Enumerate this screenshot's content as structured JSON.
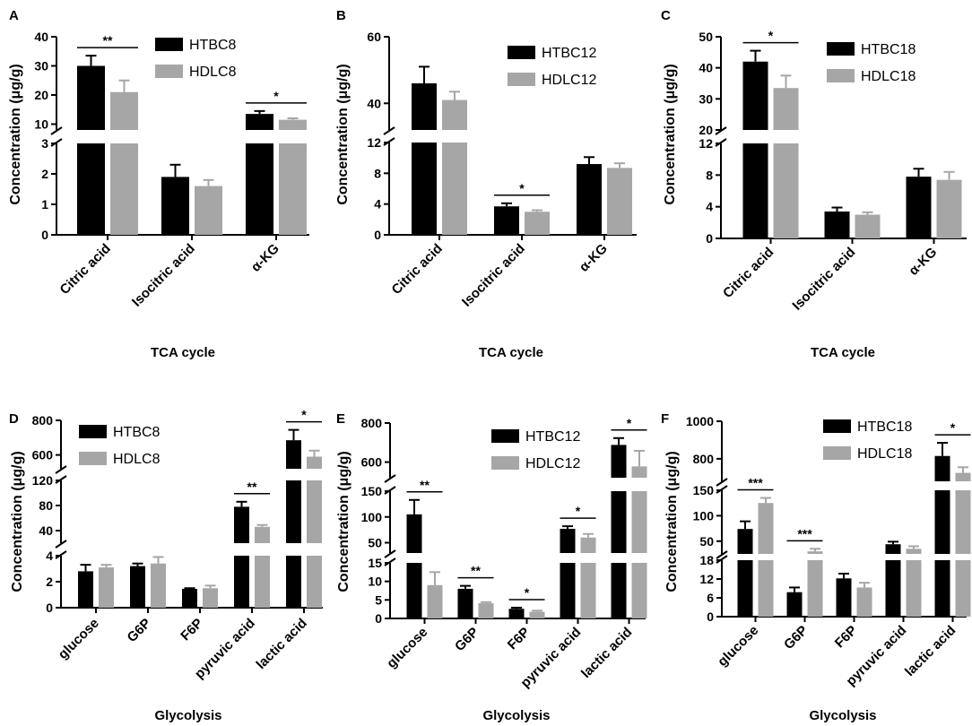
{
  "colors": {
    "series1": "#000000",
    "series2": "#a6a6a6",
    "axis": "#000000"
  },
  "chart_data": [
    {
      "type": "bar",
      "panel_label": "A",
      "title": "",
      "xlabel": "TCA cycle",
      "ylabel": "Concentration (μg/g)",
      "categories": [
        "Citric acid",
        "Isocitric acid",
        "α-KG"
      ],
      "legend_position": "top-right",
      "series": [
        {
          "name": "HTBC8",
          "values": [
            30,
            1.9,
            13.5
          ],
          "errors": [
            3.5,
            0.4,
            1.0
          ]
        },
        {
          "name": "HDLC8",
          "values": [
            21,
            1.6,
            11.5
          ],
          "errors": [
            4.0,
            0.2,
            0.5
          ]
        }
      ],
      "y_segments": [
        {
          "range": [
            0,
            3
          ],
          "ticks": [
            0,
            1,
            2,
            3
          ]
        },
        {
          "range": [
            8,
            40
          ],
          "ticks": [
            10,
            20,
            30,
            40
          ]
        }
      ],
      "significance": [
        {
          "category": 0,
          "label": "**"
        },
        {
          "category": 2,
          "label": "*"
        }
      ]
    },
    {
      "type": "bar",
      "panel_label": "B",
      "title": "",
      "xlabel": "TCA cycle",
      "ylabel": "Concentration (μg/g)",
      "categories": [
        "Citric acid",
        "Isocitric acid",
        "α-KG"
      ],
      "legend_position": "top-right",
      "series": [
        {
          "name": "HTBC12",
          "values": [
            46,
            3.7,
            9.2
          ],
          "errors": [
            5.0,
            0.4,
            0.9
          ]
        },
        {
          "name": "HDLC12",
          "values": [
            41,
            3.0,
            8.7
          ],
          "errors": [
            2.5,
            0.2,
            0.6
          ]
        }
      ],
      "y_segments": [
        {
          "range": [
            0,
            12
          ],
          "ticks": [
            0,
            4,
            8,
            12
          ]
        },
        {
          "range": [
            32,
            60
          ],
          "ticks": [
            40,
            60
          ]
        }
      ],
      "significance": [
        {
          "category": 1,
          "label": "*"
        }
      ]
    },
    {
      "type": "bar",
      "panel_label": "C",
      "title": "",
      "xlabel": "TCA cycle",
      "ylabel": "Concentration (μg/g)",
      "categories": [
        "Citric acid",
        "Isocitric acid",
        "α-KG"
      ],
      "legend_position": "top-right",
      "series": [
        {
          "name": "HTBC18",
          "values": [
            42,
            3.4,
            7.8
          ],
          "errors": [
            3.5,
            0.5,
            1.0
          ]
        },
        {
          "name": "HDLC18",
          "values": [
            33.5,
            3.0,
            7.4
          ],
          "errors": [
            4.0,
            0.3,
            1.0
          ]
        }
      ],
      "y_segments": [
        {
          "range": [
            0,
            12
          ],
          "ticks": [
            0,
            4,
            8,
            12
          ]
        },
        {
          "range": [
            20,
            50
          ],
          "ticks": [
            20,
            30,
            40,
            50
          ]
        }
      ],
      "significance": [
        {
          "category": 0,
          "label": "*"
        }
      ]
    },
    {
      "type": "bar",
      "panel_label": "D",
      "title": "",
      "xlabel": "Glycolysis",
      "ylabel": "Concentration (μg/g)",
      "categories": [
        "glucose",
        "G6P",
        "F6P",
        "pyruvic acid",
        "lactic acid"
      ],
      "legend_position": "top-left",
      "series": [
        {
          "name": "HTBC8",
          "values": [
            2.8,
            3.2,
            1.45,
            78,
            685
          ],
          "errors": [
            0.5,
            0.2,
            0.05,
            8,
            60
          ]
        },
        {
          "name": "HDLC8",
          "values": [
            3.1,
            3.4,
            1.5,
            46,
            590
          ],
          "errors": [
            0.2,
            0.5,
            0.2,
            3,
            35
          ]
        }
      ],
      "y_segments": [
        {
          "range": [
            0,
            4
          ],
          "ticks": [
            0,
            2,
            4
          ]
        },
        {
          "range": [
            20,
            120
          ],
          "ticks": [
            40,
            80,
            120
          ]
        },
        {
          "range": [
            520,
            800
          ],
          "ticks": [
            600,
            800
          ]
        }
      ],
      "significance": [
        {
          "category": 3,
          "label": "**"
        },
        {
          "category": 4,
          "label": "*"
        }
      ]
    },
    {
      "type": "bar",
      "panel_label": "E",
      "title": "",
      "xlabel": "Glycolysis",
      "ylabel": "Concentration (μg/g)",
      "categories": [
        "glucose",
        "G6P",
        "F6P",
        "pyruvic acid",
        "lactic acid"
      ],
      "legend_position": "top-right",
      "series": [
        {
          "name": "HTBC12",
          "values": [
            105,
            8.0,
            2.6,
            77,
            688
          ],
          "errors": [
            28,
            0.8,
            0.3,
            5,
            35
          ]
        },
        {
          "name": "HDLC12",
          "values": [
            9,
            4.1,
            1.8,
            60,
            578
          ],
          "errors": [
            3.5,
            0.3,
            0.3,
            7,
            80
          ]
        }
      ],
      "y_segments": [
        {
          "range": [
            0,
            15
          ],
          "ticks": [
            0,
            5,
            10,
            15
          ]
        },
        {
          "range": [
            30,
            150
          ],
          "ticks": [
            50,
            100,
            150
          ]
        },
        {
          "range": [
            520,
            800
          ],
          "ticks": [
            600,
            800
          ]
        }
      ],
      "significance": [
        {
          "category": 0,
          "label": "**"
        },
        {
          "category": 1,
          "label": "**"
        },
        {
          "category": 2,
          "label": "*"
        },
        {
          "category": 3,
          "label": "*"
        },
        {
          "category": 4,
          "label": "*"
        }
      ]
    },
    {
      "type": "bar",
      "panel_label": "F",
      "title": "",
      "xlabel": "Glycolysis",
      "ylabel": "Concentration (μg/g)",
      "categories": [
        "glucose",
        "G6P",
        "F6P",
        "pyruvic acid",
        "lactic acid"
      ],
      "legend_position": "top-right",
      "series": [
        {
          "name": "HTBC18",
          "values": [
            74,
            7.8,
            12.2,
            44,
            815
          ],
          "errors": [
            15,
            1.5,
            1.5,
            5,
            70
          ]
        },
        {
          "name": "HDLC18",
          "values": [
            125,
            30,
            9.3,
            35,
            725
          ],
          "errors": [
            10,
            5,
            1.5,
            5,
            30
          ]
        }
      ],
      "y_segments": [
        {
          "range": [
            0,
            18
          ],
          "ticks": [
            0,
            6,
            12,
            18
          ]
        },
        {
          "range": [
            25,
            150
          ],
          "ticks": [
            50,
            100,
            150
          ]
        },
        {
          "range": [
            680,
            1000
          ],
          "ticks": [
            800,
            1000
          ]
        }
      ],
      "significance": [
        {
          "category": 0,
          "label": "***"
        },
        {
          "category": 1,
          "label": "***"
        },
        {
          "category": 4,
          "label": "*"
        }
      ]
    }
  ]
}
